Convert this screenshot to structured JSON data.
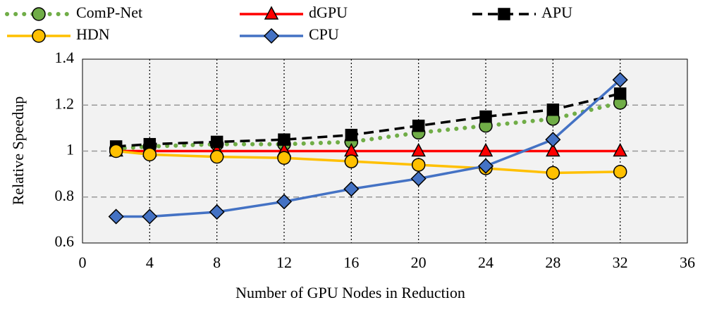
{
  "chart_data": {
    "type": "line",
    "xlabel": "Number of GPU Nodes in Reduction",
    "ylabel": "Relative Speedup",
    "x": [
      2,
      4,
      8,
      12,
      16,
      20,
      24,
      28,
      32
    ],
    "series": [
      {
        "name": "ComP-Net",
        "color": "#70ad47",
        "marker": "circle",
        "line": "dotted",
        "values": [
          1.01,
          1.02,
          1.03,
          1.03,
          1.04,
          1.08,
          1.11,
          1.14,
          1.21
        ]
      },
      {
        "name": "dGPU",
        "color": "#ff0000",
        "marker": "triangle",
        "line": "solid",
        "values": [
          1,
          1,
          1,
          1,
          1,
          1,
          1,
          1,
          1
        ]
      },
      {
        "name": "APU",
        "color": "#000000",
        "marker": "square",
        "line": "dashed",
        "values": [
          1.02,
          1.03,
          1.04,
          1.05,
          1.07,
          1.11,
          1.15,
          1.18,
          1.25
        ]
      },
      {
        "name": "HDN",
        "color": "#ffc000",
        "marker": "circle",
        "line": "solid",
        "values": [
          1,
          0.985,
          0.975,
          0.97,
          0.955,
          0.94,
          0.925,
          0.905,
          0.91
        ]
      },
      {
        "name": "CPU",
        "color": "#4472c4",
        "marker": "diamond",
        "line": "solid",
        "values": [
          0.715,
          0.715,
          0.735,
          0.78,
          0.835,
          0.88,
          0.935,
          1.05,
          1.31
        ]
      }
    ],
    "xlim": [
      0,
      36
    ],
    "xticks": [
      0,
      4,
      8,
      12,
      16,
      20,
      24,
      28,
      32,
      36
    ],
    "ylim": [
      0.6,
      1.4
    ],
    "yticks": [
      0.6,
      0.8,
      1,
      1.2,
      1.4
    ],
    "grid": true,
    "legend": "top"
  }
}
